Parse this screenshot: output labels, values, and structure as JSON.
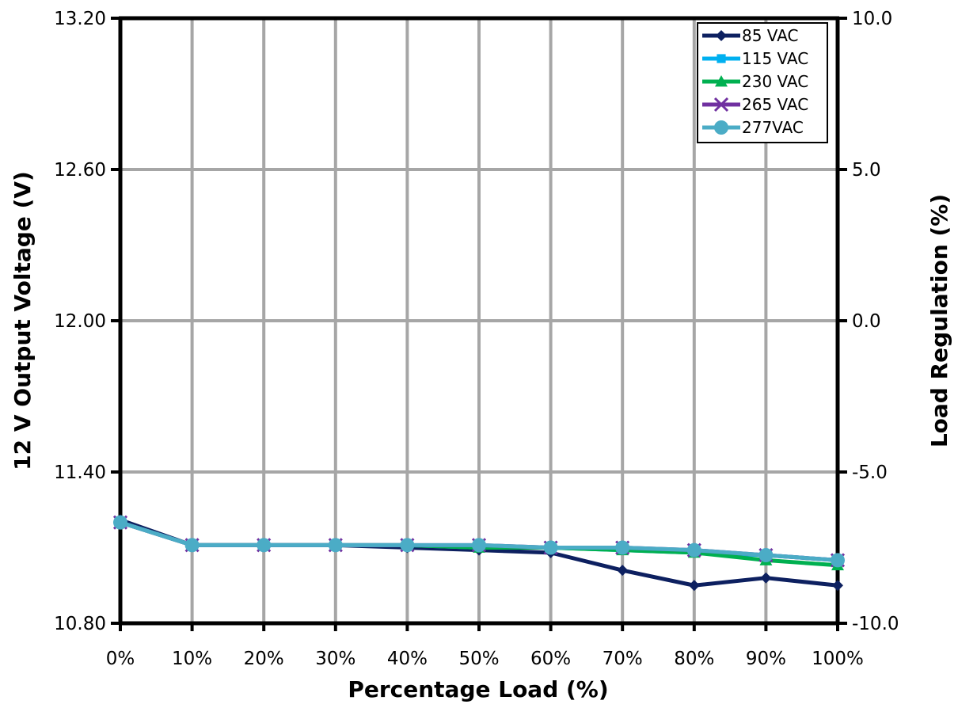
{
  "chart_data": {
    "type": "line",
    "title": "",
    "xlabel": "Percentage Load (%)",
    "ylabel": "12 V Output Voltage (V)",
    "y2label": "Load Regulation (%)",
    "x": [
      0,
      10,
      20,
      30,
      40,
      50,
      60,
      70,
      80,
      90,
      100
    ],
    "x_tick_labels": [
      "0%",
      "10%",
      "20%",
      "30%",
      "40%",
      "50%",
      "60%",
      "70%",
      "80%",
      "90%",
      "100%"
    ],
    "xlim": [
      0,
      100
    ],
    "ylim": [
      10.8,
      13.2
    ],
    "y_tick_values": [
      10.8,
      11.4,
      12.0,
      12.6,
      13.2
    ],
    "y_tick_labels": [
      "10.80",
      "11.40",
      "12.00",
      "12.60",
      "13.20"
    ],
    "y2lim": [
      -10.0,
      10.0
    ],
    "y2_tick_values": [
      -10.0,
      -5.0,
      0.0,
      5.0,
      10.0
    ],
    "y2_tick_labels": [
      "-10.0",
      "-5.0",
      "0.0",
      "5.0",
      "10.0"
    ],
    "grid": true,
    "legend_position": "top-right",
    "series": [
      {
        "name": "85 VAC",
        "color": "#0d2060",
        "marker": "diamond",
        "values": [
          11.21,
          11.11,
          11.11,
          11.11,
          11.1,
          11.09,
          11.08,
          11.01,
          10.95,
          10.98,
          10.95
        ]
      },
      {
        "name": "115 VAC",
        "color": "#00b0f0",
        "marker": "square",
        "values": [
          11.2,
          11.11,
          11.11,
          11.11,
          11.11,
          11.1,
          11.1,
          11.09,
          11.08,
          11.07,
          11.05
        ]
      },
      {
        "name": "230 VAC",
        "color": "#00b050",
        "marker": "triangle",
        "values": [
          11.2,
          11.11,
          11.11,
          11.11,
          11.11,
          11.1,
          11.1,
          11.09,
          11.08,
          11.05,
          11.03
        ]
      },
      {
        "name": "265 VAC",
        "color": "#7030a0",
        "marker": "x",
        "values": [
          11.2,
          11.11,
          11.11,
          11.11,
          11.11,
          11.11,
          11.1,
          11.1,
          11.09,
          11.07,
          11.05
        ]
      },
      {
        "name": "277VAC",
        "color": "#4bacc6",
        "marker": "circle",
        "values": [
          11.2,
          11.11,
          11.11,
          11.11,
          11.11,
          11.11,
          11.1,
          11.1,
          11.09,
          11.07,
          11.05
        ]
      }
    ]
  }
}
